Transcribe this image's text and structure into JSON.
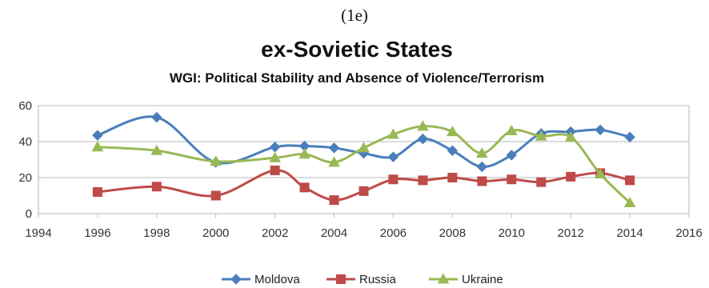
{
  "chart_data": {
    "type": "line",
    "panel_label": "(1e)",
    "title": "ex-Sovietic States",
    "subtitle": "WGI: Political Stability and Absence of Violence/Terrorism",
    "xlim": [
      1994,
      2016
    ],
    "ylim": [
      0,
      60
    ],
    "xticks": [
      1994,
      1996,
      1998,
      2000,
      2002,
      2004,
      2006,
      2008,
      2010,
      2012,
      2014,
      2016
    ],
    "yticks": [
      0,
      20,
      40,
      60
    ],
    "grid": "horizontal",
    "legend_position": "bottom",
    "series": [
      {
        "name": "Moldova",
        "color": "#4a7ebb",
        "marker": "diamond",
        "points": [
          [
            1996,
            43.5
          ],
          [
            1998,
            53.5
          ],
          [
            2000,
            28.5
          ],
          [
            2002,
            37
          ],
          [
            2003,
            37.5
          ],
          [
            2004,
            36.5
          ],
          [
            2005,
            33.5
          ],
          [
            2006,
            31.5
          ],
          [
            2007,
            41.5
          ],
          [
            2008,
            35
          ],
          [
            2009,
            26
          ],
          [
            2010,
            32.5
          ],
          [
            2011,
            44.5
          ],
          [
            2012,
            45.5
          ],
          [
            2013,
            46.5
          ],
          [
            2014,
            42.5
          ]
        ]
      },
      {
        "name": "Russia",
        "color": "#be4b48",
        "marker": "square",
        "points": [
          [
            1996,
            12
          ],
          [
            1998,
            15
          ],
          [
            2000,
            10
          ],
          [
            2002,
            24
          ],
          [
            2003,
            14.5
          ],
          [
            2004,
            7.5
          ],
          [
            2005,
            12.5
          ],
          [
            2006,
            19
          ],
          [
            2007,
            18.5
          ],
          [
            2008,
            20
          ],
          [
            2009,
            18
          ],
          [
            2010,
            19
          ],
          [
            2011,
            17.5
          ],
          [
            2012,
            20.5
          ],
          [
            2013,
            22.5
          ],
          [
            2014,
            18.5
          ]
        ]
      },
      {
        "name": "Ukraine",
        "color": "#98b954",
        "marker": "triangle",
        "points": [
          [
            1996,
            37
          ],
          [
            1998,
            35
          ],
          [
            2000,
            29
          ],
          [
            2002,
            31
          ],
          [
            2003,
            33
          ],
          [
            2004,
            28.5
          ],
          [
            2005,
            36.5
          ],
          [
            2006,
            44
          ],
          [
            2007,
            48.5
          ],
          [
            2008,
            45.5
          ],
          [
            2009,
            33.5
          ],
          [
            2010,
            46
          ],
          [
            2011,
            43
          ],
          [
            2012,
            42.5
          ],
          [
            2013,
            22
          ],
          [
            2014,
            6
          ]
        ]
      }
    ]
  }
}
